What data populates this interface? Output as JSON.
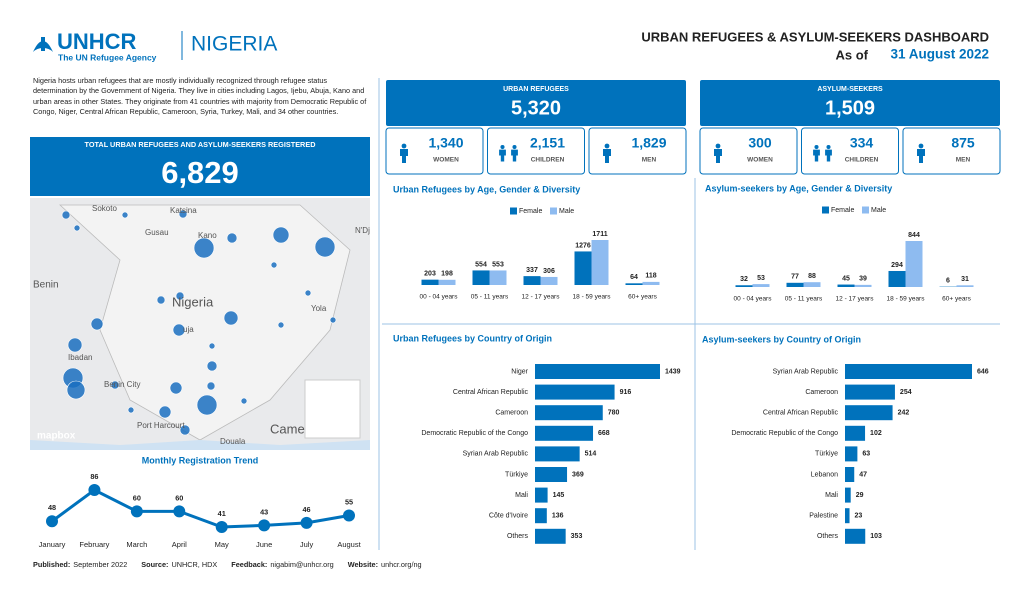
{
  "header": {
    "logo": "UNHCR",
    "tagline": "The UN Refugee Agency",
    "country": "NIGERIA",
    "title": "URBAN REFUGEES & ASYLUM-SEEKERS DASHBOARD",
    "as_of": "As of",
    "date": "31 August 2022"
  },
  "intro": "Nigeria hosts urban refugees that are mostly individually recognized through refugee status determination by the Government of Nigeria. They live in cities including Lagos, Ijebu, Abuja, Kano and urban areas in other States. They originate from 41 countries with majority from Democratic Republic of Congo, Niger, Central African Republic, Cameroon, Syria, Turkey, Mali, and 34 other countries.",
  "total": {
    "label": "TOTAL URBAN REFUGEES AND ASYLUM-SEEKERS REGISTERED",
    "value": "6,829"
  },
  "map": {
    "labels": [
      "Sokoto",
      "Katsina",
      "Kano",
      "Gusau",
      "N'Dj",
      "Benin",
      "Nigeria",
      "Yola",
      "uja",
      "Ibadan",
      "Benin City",
      "Port Harcourt",
      "Douala",
      "Camer"
    ],
    "brand": "mapbox"
  },
  "panels": [
    {
      "title": "URBAN REFUGEES",
      "total": "5,320",
      "groups": [
        {
          "value": "1,340",
          "label": "WOMEN"
        },
        {
          "value": "2,151",
          "label": "CHILDREN"
        },
        {
          "value": "1,829",
          "label": "MEN"
        }
      ]
    },
    {
      "title": "ASYLUM-SEEKERS",
      "total": "1,509",
      "groups": [
        {
          "value": "300",
          "label": "WOMEN"
        },
        {
          "value": "334",
          "label": "CHILDREN"
        },
        {
          "value": "875",
          "label": "MEN"
        }
      ]
    }
  ],
  "chart_data": [
    {
      "type": "line",
      "title": "Monthly Registration Trend",
      "categories": [
        "January",
        "February",
        "March",
        "April",
        "May",
        "June",
        "July",
        "August"
      ],
      "values": [
        48,
        86,
        60,
        60,
        41,
        43,
        46,
        55
      ],
      "color": "#0072bc"
    },
    {
      "type": "grouped-bar",
      "title": "Urban Refugees by Age, Gender & Diversity",
      "categories": [
        "00 - 04 years",
        "05 - 11 years",
        "12 - 17 years",
        "18 - 59 years",
        "60+ years"
      ],
      "series": [
        {
          "name": "Female",
          "color": "#0072bc",
          "values": [
            203,
            554,
            337,
            1276,
            64
          ]
        },
        {
          "name": "Male",
          "color": "#8ebbf0",
          "values": [
            198,
            553,
            306,
            1711,
            118
          ]
        }
      ]
    },
    {
      "type": "grouped-bar",
      "title": "Asylum-seekers by Age, Gender & Diversity",
      "categories": [
        "00 - 04 years",
        "05 - 11 years",
        "12 - 17 years",
        "18 - 59 years",
        "60+ years"
      ],
      "series": [
        {
          "name": "Female",
          "color": "#0072bc",
          "values": [
            32,
            77,
            45,
            294,
            6
          ]
        },
        {
          "name": "Male",
          "color": "#8ebbf0",
          "values": [
            53,
            88,
            39,
            844,
            31
          ]
        }
      ]
    },
    {
      "type": "hbar",
      "title": "Urban Refugees by Country of Origin",
      "categories": [
        "Niger",
        "Central African Republic",
        "Cameroon",
        "Democratic Republic of the Congo",
        "Syrian Arab Republic",
        "Türkiye",
        "Mali",
        "Côte d'Ivoire",
        "Others"
      ],
      "values": [
        1439,
        916,
        780,
        668,
        514,
        369,
        145,
        136,
        353
      ],
      "color": "#0072bc"
    },
    {
      "type": "hbar",
      "title": "Asylum-seekers by Country of Origin",
      "categories": [
        "Syrian Arab Republic",
        "Cameroon",
        "Central African Republic",
        "Democratic Republic of the Congo",
        "Türkiye",
        "Lebanon",
        "Mali",
        "Palestine",
        "Others"
      ],
      "values": [
        646,
        254,
        242,
        102,
        63,
        47,
        29,
        23,
        103
      ],
      "color": "#0072bc"
    }
  ],
  "footer": [
    {
      "label": "Published:",
      "value": "September 2022"
    },
    {
      "label": "Source:",
      "value": "UNHCR, HDX"
    },
    {
      "label": "Feedback:",
      "value": "nigabim@unhcr.org"
    },
    {
      "label": "Website:",
      "value": "unhcr.org/ng"
    }
  ]
}
